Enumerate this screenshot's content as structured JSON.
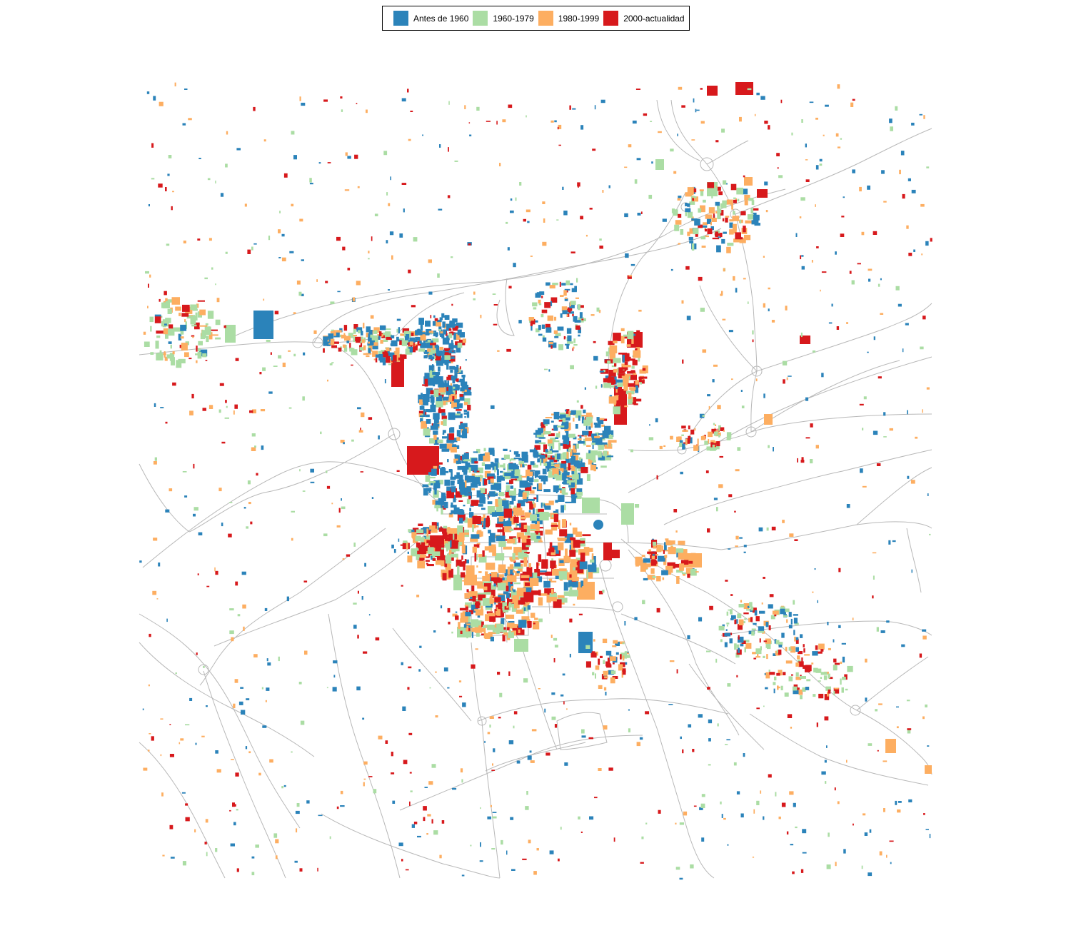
{
  "legend": {
    "items": [
      {
        "label": "Antes de 1960",
        "color": "#2b83ba"
      },
      {
        "label": "1960-1979",
        "color": "#abdda4"
      },
      {
        "label": "1980-1999",
        "color": "#fdae61"
      },
      {
        "label": "2000-actualidad",
        "color": "#d7191c"
      }
    ]
  },
  "map": {
    "road_color": "#b8b8b8",
    "background": "#ffffff"
  }
}
